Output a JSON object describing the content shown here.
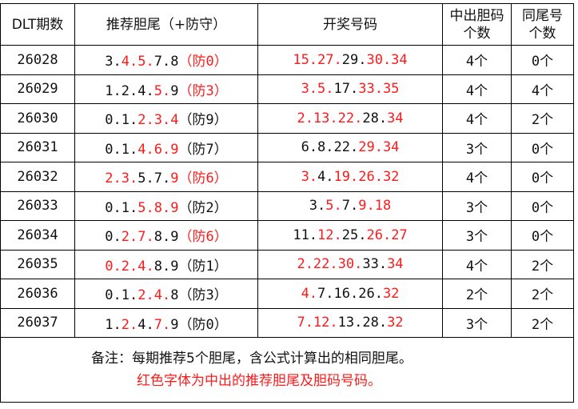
{
  "colors": {
    "hit": "#ff1a1a",
    "normal": "#111111"
  },
  "headers": [
    "DLT期数",
    "推荐胆尾（+防守）",
    "开奖号码",
    "中出胆码个数",
    "同尾号个数"
  ],
  "rows": [
    {
      "period": "26028",
      "rec": [
        [
          "3.",
          0
        ],
        [
          "4.5.",
          1
        ],
        [
          "7.8",
          0
        ],
        [
          "（防0）",
          1
        ]
      ],
      "draw": [
        [
          "15.27.",
          1
        ],
        [
          "29.",
          0
        ],
        [
          "30.34",
          1
        ]
      ],
      "hits": "4个",
      "same": "0个"
    },
    {
      "period": "26029",
      "rec": [
        [
          "1.2.4.",
          0
        ],
        [
          "5.",
          1
        ],
        [
          "9",
          0
        ],
        [
          "（防3）",
          1
        ]
      ],
      "draw": [
        [
          "3.5.",
          1
        ],
        [
          "17.",
          0
        ],
        [
          "33.35",
          1
        ]
      ],
      "hits": "4个",
      "same": "4个"
    },
    {
      "period": "26030",
      "rec": [
        [
          "0.1.",
          0
        ],
        [
          "2.3.4",
          1
        ],
        [
          "（防9）",
          0
        ]
      ],
      "draw": [
        [
          "2.13.22.",
          1
        ],
        [
          "28.",
          0
        ],
        [
          "34",
          1
        ]
      ],
      "hits": "4个",
      "same": "2个"
    },
    {
      "period": "26031",
      "rec": [
        [
          "0.1.",
          0
        ],
        [
          "4.6.9",
          1
        ],
        [
          "（防7）",
          0
        ]
      ],
      "draw": [
        [
          "6.8.22.",
          0
        ],
        [
          "29.34",
          1
        ]
      ],
      "hits": "3个",
      "same": "0个"
    },
    {
      "period": "26032",
      "rec": [
        [
          "2.3.",
          1
        ],
        [
          "5.7.",
          0
        ],
        [
          "9（防6）",
          1
        ]
      ],
      "draw": [
        [
          "3.",
          1
        ],
        [
          "4.",
          0
        ],
        [
          "19.26.32",
          1
        ]
      ],
      "hits": "4个",
      "same": "0个"
    },
    {
      "period": "26033",
      "rec": [
        [
          "0.1.",
          0
        ],
        [
          "5.8.9",
          1
        ],
        [
          "（防2）",
          0
        ]
      ],
      "draw": [
        [
          "3.",
          0
        ],
        [
          "5.",
          1
        ],
        [
          "7.",
          0
        ],
        [
          "9.18",
          1
        ]
      ],
      "hits": "3个",
      "same": "0个"
    },
    {
      "period": "26034",
      "rec": [
        [
          "0.",
          0
        ],
        [
          "2.7.",
          1
        ],
        [
          "8.9",
          0
        ],
        [
          "（防6）",
          1
        ]
      ],
      "draw": [
        [
          "11.",
          0
        ],
        [
          "12.",
          1
        ],
        [
          "25.",
          0
        ],
        [
          "26.27",
          1
        ]
      ],
      "hits": "3个",
      "same": "0个"
    },
    {
      "period": "26035",
      "rec": [
        [
          "0.2.4.",
          1
        ],
        [
          "8.9（防1）",
          0
        ]
      ],
      "draw": [
        [
          "2.22.30.",
          1
        ],
        [
          "33.",
          0
        ],
        [
          "34",
          1
        ]
      ],
      "hits": "4个",
      "same": "2个"
    },
    {
      "period": "26036",
      "rec": [
        [
          "0.1.",
          0
        ],
        [
          "2.4.",
          1
        ],
        [
          "8（防3）",
          0
        ]
      ],
      "draw": [
        [
          "4.",
          1
        ],
        [
          "7.16.26.",
          0
        ],
        [
          "32",
          1
        ]
      ],
      "hits": "2个",
      "same": "2个"
    },
    {
      "period": "26037",
      "rec": [
        [
          "1.",
          0
        ],
        [
          "2.",
          1
        ],
        [
          "4.",
          0
        ],
        [
          "7.",
          1
        ],
        [
          "9（防0）",
          0
        ]
      ],
      "draw": [
        [
          "7.12.",
          1
        ],
        [
          "13.28.",
          0
        ],
        [
          "32",
          1
        ]
      ],
      "hits": "3个",
      "same": "2个"
    }
  ],
  "note": {
    "line1": "备注：每期推荐5个胆尾，含公式计算出的相同胆尾。",
    "line2": "红色字体为中出的推荐胆尾及胆码号码。"
  }
}
